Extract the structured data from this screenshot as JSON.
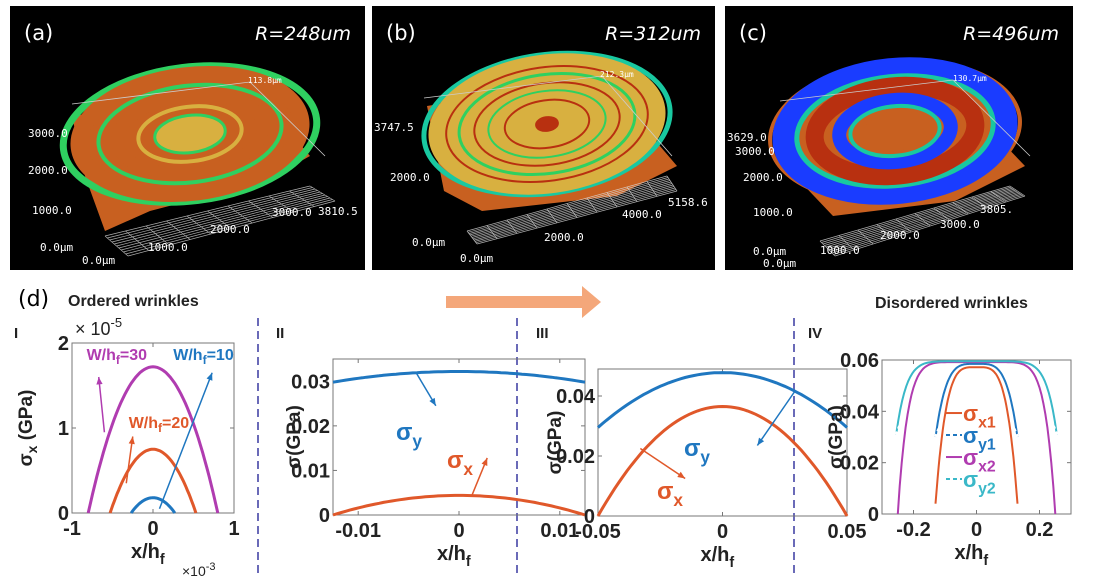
{
  "panels_3d": [
    {
      "id": "a",
      "label": "(a)",
      "radius_label": "R=248um",
      "z_max": "113.8µm",
      "y_ticks": [
        "3000.0",
        "2000.0",
        "1000.0",
        "0.0µm"
      ],
      "x_ticks": [
        "0.0µm",
        "1000.0",
        "2000.0",
        "3000.0",
        "3810.5"
      ],
      "colormap": [
        "#1a3cff",
        "#19c8a0",
        "#2fd060",
        "#d8b040",
        "#c86020",
        "#b83010"
      ],
      "description": "Ordered concentric wrinkle rings"
    },
    {
      "id": "b",
      "label": "(b)",
      "radius_label": "R=312um",
      "z_max": "212.3µm",
      "y_ticks": [
        "3747.5",
        "2000.0",
        "0.0µm"
      ],
      "x_ticks": [
        "0.0µm",
        "2000.0",
        "4000.0",
        "5158.6"
      ],
      "colormap": [
        "#1a3cff",
        "#19c8a0",
        "#2fd060",
        "#d8b040",
        "#c86020",
        "#b83010"
      ],
      "description": "Fine concentric wrinkle rings"
    },
    {
      "id": "c",
      "label": "(c)",
      "radius_label": "R=496um",
      "z_max": "130.7µm",
      "y_ticks": [
        "3629.0",
        "3000.0",
        "2000.0",
        "1000.0",
        "0.0µm"
      ],
      "x_ticks": [
        "0.0µm",
        "1000.0",
        "2000.0",
        "3000.0",
        "3805."
      ],
      "colormap": [
        "#1a3cff",
        "#19c8a0",
        "#2fd060",
        "#d8b040",
        "#c86020",
        "#b83010"
      ],
      "description": "Disordered wrinkle ring with radial segments"
    }
  ],
  "section_d": {
    "label": "(d)",
    "left_title": "Ordered wrinkles",
    "right_title": "Disordered wrinkles",
    "arrow_color": "#f4a77a",
    "divider_color": "#6a6ab8"
  },
  "colors": {
    "blue": "#1f77c0",
    "orange": "#e0582a",
    "purple": "#b03cb0",
    "cyan": "#3ab8c8"
  },
  "chart_data": [
    {
      "type": "line",
      "panel": "I",
      "title": "",
      "xlabel": "x/h_f",
      "xlabel_multiplier": "×10^-3",
      "ylabel": "σ_x (GPa)",
      "ylabel_multiplier": "×10^-5",
      "xlim": [
        -1,
        1
      ],
      "ylim": [
        0,
        2
      ],
      "xticks": [
        "-1",
        "0",
        "1"
      ],
      "yticks": [
        "0",
        "1",
        "2"
      ],
      "series": [
        {
          "name": "W/h_f=30",
          "color": "purple",
          "peak": 1.72,
          "half_width": 0.8
        },
        {
          "name": "W/h_f=20",
          "color": "orange",
          "peak": 0.75,
          "half_width": 0.53
        },
        {
          "name": "W/h_f=10",
          "color": "blue",
          "peak": 0.18,
          "half_width": 0.27
        }
      ],
      "annotations": [
        {
          "text": "W/h_f=30",
          "color": "purple",
          "arrow_from": [
            -0.6,
            0.95
          ],
          "arrow_to": [
            -0.67,
            1.6
          ],
          "label_at": [
            -0.82,
            1.8
          ]
        },
        {
          "text": "W/h_f=20",
          "color": "orange",
          "arrow_from": [
            -0.33,
            0.35
          ],
          "arrow_to": [
            -0.25,
            0.9
          ],
          "label_at": [
            -0.3,
            1.0
          ]
        },
        {
          "text": "W/h_f=10",
          "color": "blue",
          "arrow_from": [
            0.08,
            0.05
          ],
          "arrow_to": [
            0.73,
            1.65
          ],
          "label_at": [
            0.25,
            1.8
          ]
        }
      ]
    },
    {
      "type": "line",
      "panel": "II",
      "xlabel": "x/h_f",
      "ylabel": "σ (GPa)",
      "xlim": [
        -0.0125,
        0.0125
      ],
      "ylim": [
        0,
        0.035
      ],
      "xticks": [
        "-0.01",
        "0",
        "0.01"
      ],
      "yticks": [
        "0",
        "0.01",
        "0.02",
        "0.03"
      ],
      "series": [
        {
          "name": "σ_y",
          "color": "blue",
          "peak": 0.0322,
          "edge": 0.0298
        },
        {
          "name": "σ_x",
          "color": "orange",
          "peak": 0.0044,
          "edge": 0.0
        }
      ],
      "annotations": [
        {
          "text": "σ_y",
          "color": "blue",
          "arrow_from": [
            -0.0043,
            0.0321
          ],
          "arrow_to": [
            -0.0023,
            0.0245
          ]
        },
        {
          "text": "σ_x",
          "color": "orange",
          "arrow_from": [
            0.0013,
            0.0045
          ],
          "arrow_to": [
            0.0028,
            0.0128
          ]
        }
      ]
    },
    {
      "type": "line",
      "panel": "III",
      "xlabel": "x/h_f",
      "ylabel": "σ (GPa)",
      "xlim": [
        -0.05,
        0.05
      ],
      "ylim": [
        0,
        0.049
      ],
      "xticks": [
        "-0.05",
        "0",
        "0.05"
      ],
      "yticks": [
        "0",
        "0.02",
        "0.04"
      ],
      "series": [
        {
          "name": "σ_y",
          "color": "blue",
          "peak": 0.0478,
          "edge": 0.0295
        },
        {
          "name": "σ_x",
          "color": "orange",
          "peak": 0.0365,
          "edge": 0.0
        }
      ],
      "annotations": [
        {
          "text": "σ_y",
          "color": "blue",
          "arrow_from": [
            0.029,
            0.0415
          ],
          "arrow_to": [
            0.014,
            0.0235
          ]
        },
        {
          "text": "σ_x",
          "color": "orange",
          "arrow_from": [
            -0.033,
            0.0225
          ],
          "arrow_to": [
            -0.015,
            0.0125
          ]
        }
      ]
    },
    {
      "type": "line",
      "panel": "IV",
      "xlabel": "x/h_f",
      "ylabel": "σ (GPa)",
      "xlim": [
        -0.3,
        0.3
      ],
      "ylim": [
        0,
        0.06
      ],
      "xticks": [
        "-0.2",
        "0",
        "0.2"
      ],
      "yticks": [
        "0",
        "0.02",
        "0.04",
        "0.06"
      ],
      "legend": {
        "placement": "center",
        "entries": [
          {
            "name": "σ_x1",
            "color": "orange",
            "dash": false
          },
          {
            "name": "σ_y1",
            "color": "blue",
            "dash": true
          },
          {
            "name": "σ_x2",
            "color": "purple",
            "dash": false
          },
          {
            "name": "σ_y2",
            "color": "cyan",
            "dash": true
          }
        ]
      },
      "series": [
        {
          "name": "σ_x1",
          "color": "orange",
          "peak": 0.0572,
          "half_width": 0.13,
          "end_value": 0.004,
          "shape": "flat"
        },
        {
          "name": "σ_y1",
          "color": "blue",
          "peak": 0.0585,
          "half_width": 0.13,
          "end_value": 0.03,
          "shape": "flat"
        },
        {
          "name": "σ_x2",
          "color": "purple",
          "peak": 0.0592,
          "half_width": 0.25,
          "end_value": 0.0,
          "shape": "flatter"
        },
        {
          "name": "σ_y2",
          "color": "cyan",
          "peak": 0.0595,
          "half_width": 0.255,
          "end_value": 0.031,
          "shape": "flatter"
        }
      ]
    }
  ],
  "panel_labels": [
    "I",
    "II",
    "III",
    "IV"
  ]
}
